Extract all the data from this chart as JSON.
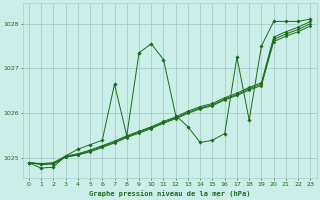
{
  "bg_color": "#cceee8",
  "grid_color": "#aacccc",
  "line_color": "#1a6b1a",
  "marker_color": "#1a6b1a",
  "title": "Graphe pression niveau de la mer (hPa)",
  "xlim": [
    -0.5,
    23.5
  ],
  "ylim": [
    1024.55,
    1028.45
  ],
  "yticks": [
    1025,
    1026,
    1027,
    1028
  ],
  "xticks": [
    0,
    1,
    2,
    3,
    4,
    5,
    6,
    7,
    8,
    9,
    10,
    11,
    12,
    13,
    14,
    15,
    16,
    17,
    18,
    19,
    20,
    21,
    22,
    23
  ],
  "line1_x": [
    0,
    1,
    2,
    3,
    4,
    5,
    6,
    7,
    8,
    9,
    10,
    11,
    12,
    13,
    14,
    15,
    16,
    17,
    18,
    19,
    20,
    21,
    22,
    23
  ],
  "line1_y": [
    1024.9,
    1024.78,
    1024.8,
    1025.05,
    1025.2,
    1025.3,
    1025.4,
    1026.65,
    1025.5,
    1027.35,
    1027.55,
    1027.2,
    1025.95,
    1025.7,
    1025.35,
    1025.4,
    1025.55,
    1027.25,
    1025.85,
    1027.5,
    1028.05,
    1028.05,
    1028.05,
    1028.1
  ],
  "line2_x": [
    0,
    1,
    2,
    3,
    4,
    5,
    6,
    7,
    8,
    9,
    10,
    11,
    12,
    13,
    14,
    15,
    16,
    17,
    18,
    19,
    20,
    21,
    22,
    23
  ],
  "line2_y": [
    1024.9,
    1024.88,
    1024.9,
    1025.05,
    1025.1,
    1025.18,
    1025.28,
    1025.38,
    1025.5,
    1025.6,
    1025.7,
    1025.82,
    1025.92,
    1026.05,
    1026.15,
    1026.22,
    1026.35,
    1026.45,
    1026.58,
    1026.68,
    1027.7,
    1027.82,
    1027.92,
    1028.05
  ],
  "line3_x": [
    0,
    1,
    2,
    3,
    4,
    5,
    6,
    7,
    8,
    9,
    10,
    11,
    12,
    13,
    14,
    15,
    16,
    17,
    18,
    19,
    20,
    21,
    22,
    23
  ],
  "line3_y": [
    1024.9,
    1024.87,
    1024.88,
    1025.03,
    1025.08,
    1025.16,
    1025.26,
    1025.36,
    1025.48,
    1025.58,
    1025.68,
    1025.8,
    1025.9,
    1026.02,
    1026.12,
    1026.19,
    1026.32,
    1026.42,
    1026.55,
    1026.65,
    1027.65,
    1027.77,
    1027.87,
    1028.0
  ],
  "line4_x": [
    0,
    1,
    2,
    3,
    4,
    5,
    6,
    7,
    8,
    9,
    10,
    11,
    12,
    13,
    14,
    15,
    16,
    17,
    18,
    19,
    20,
    21,
    22,
    23
  ],
  "line4_y": [
    1024.9,
    1024.86,
    1024.87,
    1025.02,
    1025.07,
    1025.14,
    1025.24,
    1025.34,
    1025.46,
    1025.56,
    1025.66,
    1025.78,
    1025.88,
    1026.0,
    1026.1,
    1026.17,
    1026.3,
    1026.4,
    1026.52,
    1026.62,
    1027.6,
    1027.72,
    1027.82,
    1027.95
  ]
}
